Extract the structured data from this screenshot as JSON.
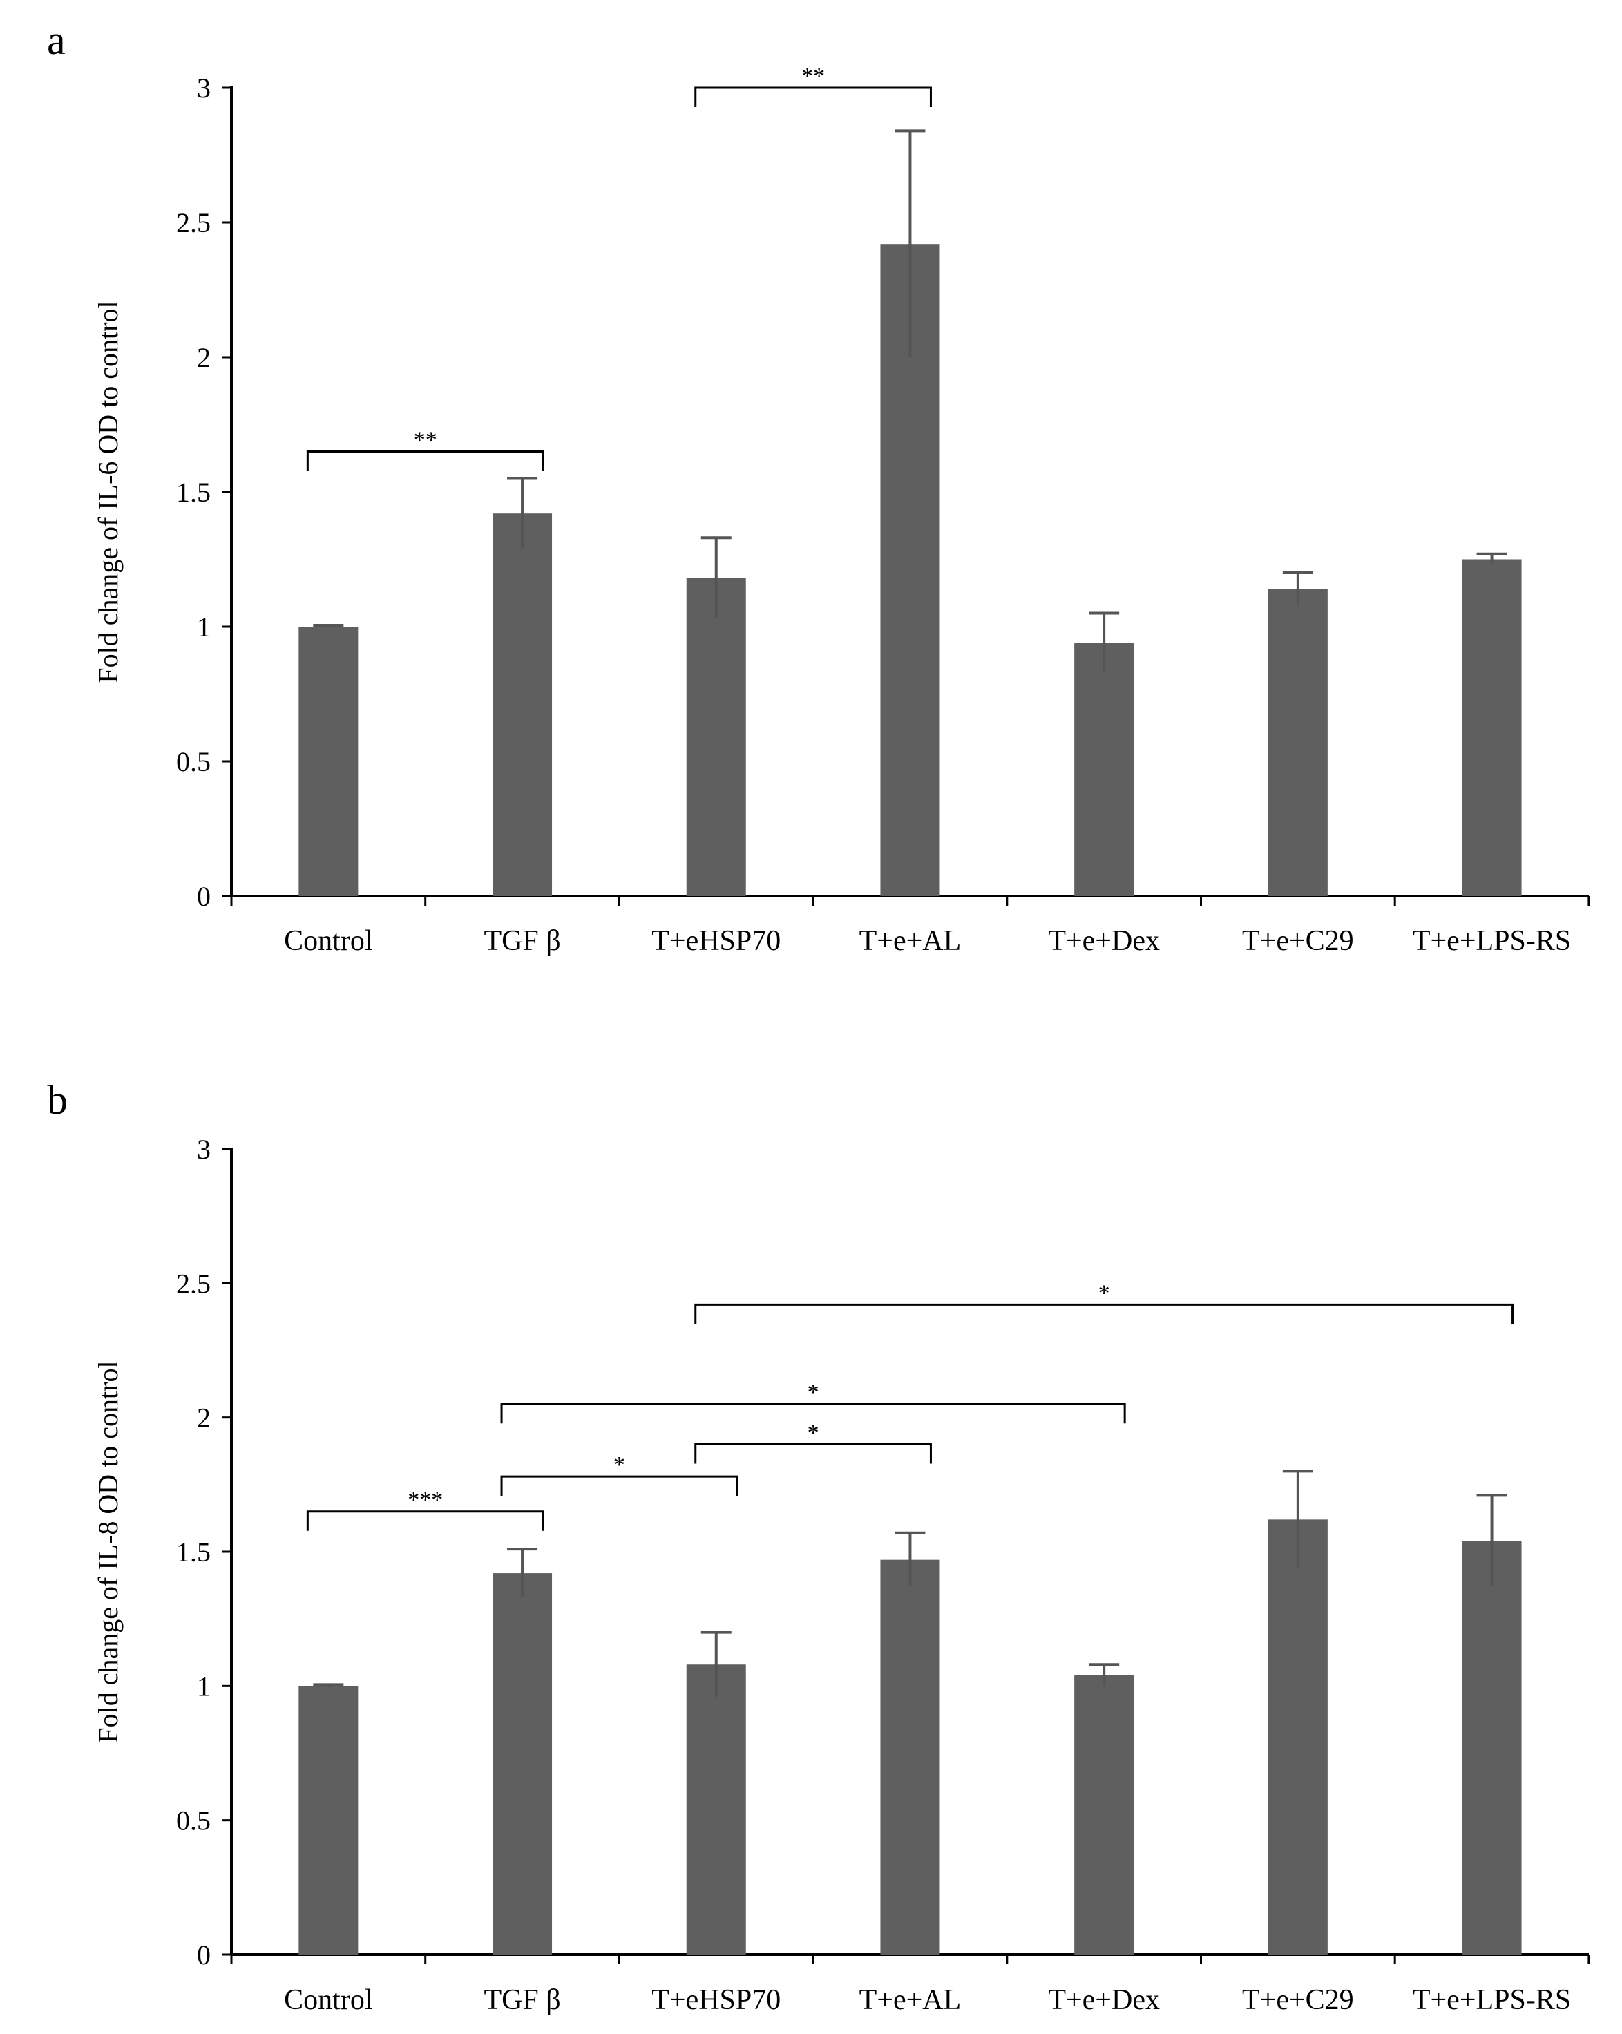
{
  "colors": {
    "bar": "#5f5f5f",
    "error_bar": "#555555",
    "axis": "#000000",
    "bracket": "#000000"
  },
  "chart_data": [
    {
      "type": "bar",
      "panel": "a",
      "title": "",
      "xlabel": "",
      "ylabel": "Fold change of IL-6 OD to control",
      "ylim": [
        0,
        3
      ],
      "yticks": [
        "0",
        "0.5",
        "1",
        "1.5",
        "2",
        "2.5",
        "3"
      ],
      "categories": [
        "Control",
        "TGF β",
        "T+eHSP70",
        "T+e+AL",
        "T+e+Dex",
        "T+e+C29",
        "T+e+LPS-RS"
      ],
      "values": [
        1.0,
        1.42,
        1.18,
        2.42,
        0.94,
        1.14,
        1.25
      ],
      "errors": [
        0.005,
        0.13,
        0.15,
        0.42,
        0.11,
        0.06,
        0.02
      ],
      "legend": "none",
      "grid": false,
      "significance": [
        {
          "from": 0,
          "to": 1,
          "label": "**",
          "level": 1.65
        },
        {
          "from": 2,
          "to": 3,
          "label": "**",
          "level": 3.0
        }
      ]
    },
    {
      "type": "bar",
      "panel": "b",
      "title": "",
      "xlabel": "",
      "ylabel": "Fold change of IL-8 OD to control",
      "ylim": [
        0,
        3
      ],
      "yticks": [
        "0",
        "0.5",
        "1",
        "1.5",
        "2",
        "2.5",
        "3"
      ],
      "categories": [
        "Control",
        "TGF β",
        "T+eHSP70",
        "T+e+AL",
        "T+e+Dex",
        "T+e+C29",
        "T+e+LPS-RS"
      ],
      "values": [
        1.0,
        1.42,
        1.08,
        1.47,
        1.04,
        1.62,
        1.54
      ],
      "errors": [
        0.005,
        0.09,
        0.12,
        0.1,
        0.04,
        0.18,
        0.17
      ],
      "legend": "none",
      "grid": false,
      "significance": [
        {
          "from": 0,
          "to": 1,
          "label": "***",
          "level": 1.65
        },
        {
          "from": 1,
          "to": 2,
          "label": "*",
          "level": 1.78
        },
        {
          "from": 2,
          "to": 3,
          "label": "*",
          "level": 1.9
        },
        {
          "from": 1,
          "to": 4,
          "label": "*",
          "level": 2.05
        },
        {
          "from": 2,
          "to": 6,
          "label": "*",
          "level": 2.42
        }
      ]
    }
  ]
}
